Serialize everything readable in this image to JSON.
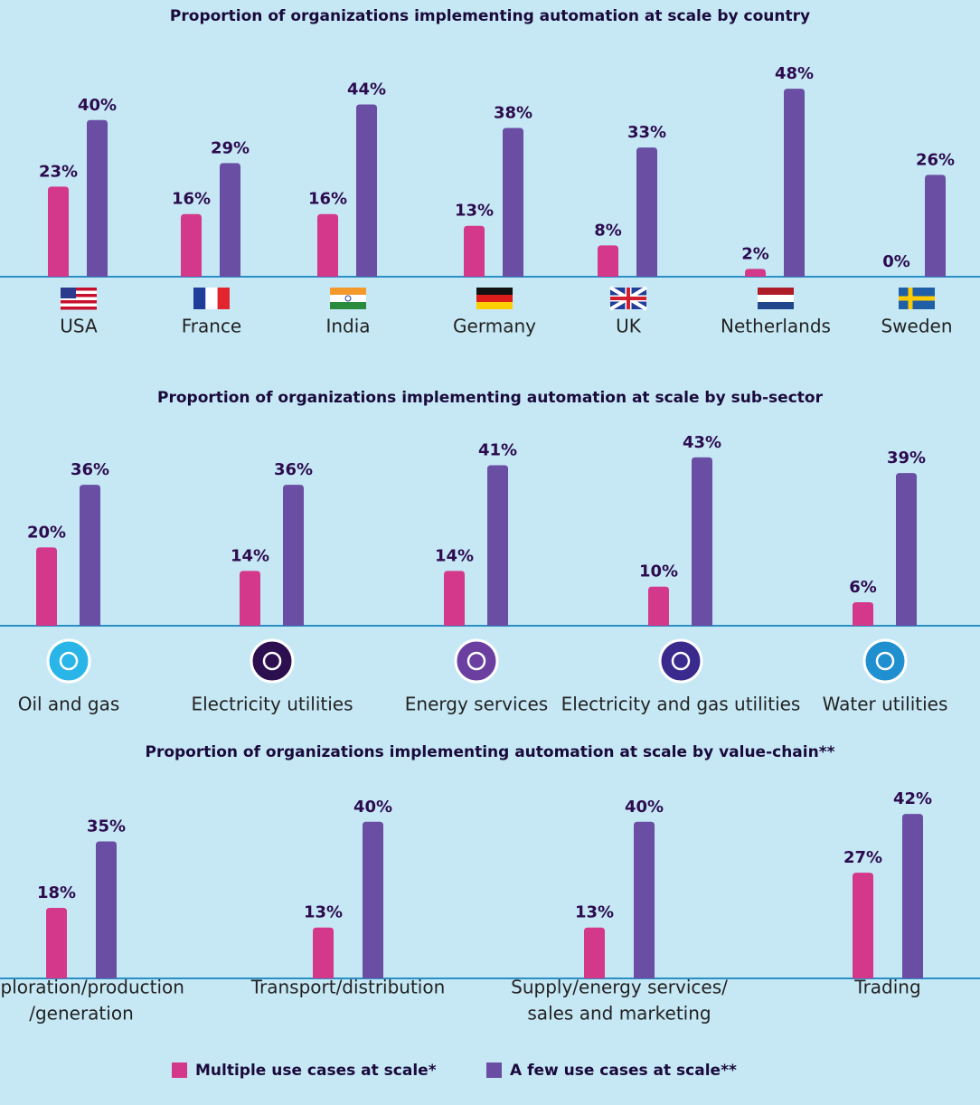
{
  "chart_data": [
    {
      "type": "bar",
      "title": "Proportion of organizations implementing automation at scale by country",
      "categories": [
        [
          "USA"
        ],
        [
          "France"
        ],
        [
          "India"
        ],
        [
          "Germany"
        ],
        [
          "UK"
        ],
        [
          "Netherlands"
        ],
        [
          "Sweden"
        ]
      ],
      "series": [
        {
          "values": [
            23,
            16,
            16,
            13,
            8,
            2,
            0
          ],
          "value_labels": [
            "23%",
            "16%",
            "16%",
            "13%",
            "8%",
            "2%",
            "0%"
          ]
        },
        {
          "values": [
            40,
            29,
            44,
            38,
            33,
            48,
            26
          ],
          "value_labels": [
            "40%",
            "29%",
            "44%",
            "38%",
            "33%",
            "48%",
            "26%"
          ]
        }
      ]
    },
    {
      "type": "bar",
      "title": "Proportion of organizations implementing automation at scale by sub-sector",
      "categories": [
        [
          "Oil and gas"
        ],
        [
          "Electricity utilities"
        ],
        [
          "Energy services"
        ],
        [
          "Electricity and gas utilities"
        ],
        [
          "Water utilities"
        ]
      ],
      "series": [
        {
          "values": [
            20,
            14,
            14,
            10,
            6
          ],
          "value_labels": [
            "20%",
            "14%",
            "14%",
            "10%",
            "6%"
          ]
        },
        {
          "values": [
            36,
            36,
            41,
            43,
            39
          ],
          "value_labels": [
            "36%",
            "36%",
            "41%",
            "43%",
            "39%"
          ]
        }
      ]
    },
    {
      "type": "bar",
      "title": "Proportion of organizations implementing automation at scale by value-chain**",
      "categories": [
        [
          "Exploration/production",
          "/generation"
        ],
        [
          "Transport/distribution"
        ],
        [
          "Supply/energy services/",
          "sales and marketing"
        ],
        [
          "Trading"
        ]
      ],
      "series": [
        {
          "values": [
            18,
            13,
            13,
            27
          ],
          "value_labels": [
            "18%",
            "13%",
            "13%",
            "27%"
          ]
        },
        {
          "values": [
            35,
            40,
            40,
            42
          ],
          "value_labels": [
            "35%",
            "40%",
            "40%",
            "42%"
          ]
        }
      ]
    }
  ],
  "legend": {
    "items": [
      {
        "name": "Multiple use cases at scale*",
        "color": "#d3388a"
      },
      {
        "name": "A few use cases at scale**",
        "color": "#6a4ea3"
      }
    ]
  }
}
